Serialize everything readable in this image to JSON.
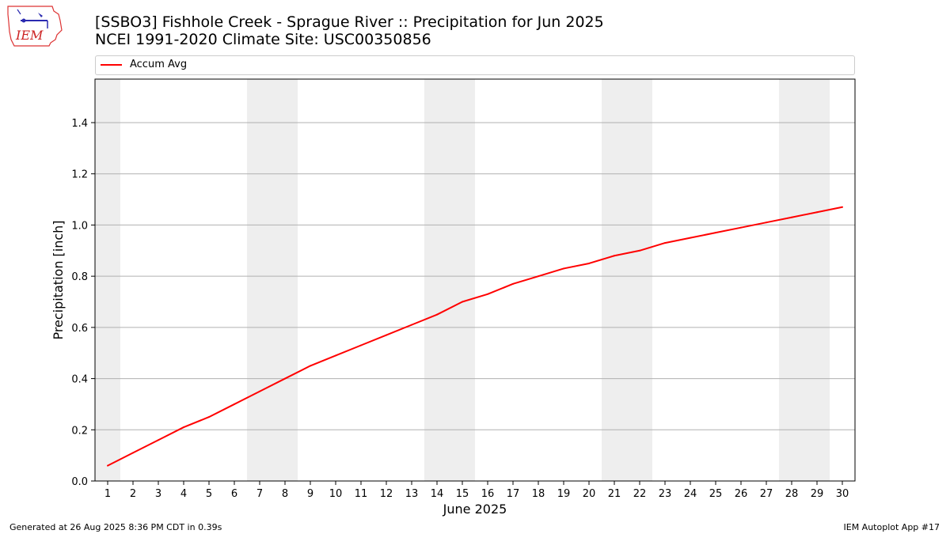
{
  "header": {
    "title_line1": "[SSBO3] Fishhole Creek - Sprague River :: Precipitation for Jun 2025",
    "title_line2": "NCEI 1991-2020 Climate Site: USC00350856",
    "logo_text": "IEM"
  },
  "footer": {
    "left": "Generated at 26 Aug 2025 8:36 PM CDT in 0.39s",
    "right": "IEM Autoplot App #17"
  },
  "colors": {
    "line": "#ff0000",
    "weekend_shade": "#eeeeee",
    "grid": "#b0b0b0"
  },
  "chart_data": {
    "type": "line",
    "xlabel": "June 2025",
    "ylabel": "Precipitation [inch]",
    "x": [
      1,
      2,
      3,
      4,
      5,
      6,
      7,
      8,
      9,
      10,
      11,
      12,
      13,
      14,
      15,
      16,
      17,
      18,
      19,
      20,
      21,
      22,
      23,
      24,
      25,
      26,
      27,
      28,
      29,
      30
    ],
    "xlim": [
      0.5,
      30.5
    ],
    "ylim": [
      0,
      1.57
    ],
    "yticks": [
      "0.0",
      "0.2",
      "0.4",
      "0.6",
      "0.8",
      "1.0",
      "1.2",
      "1.4"
    ],
    "grid": "horizontal",
    "legend_position": "top",
    "shaded_days": [
      [
        0.5,
        1.5
      ],
      [
        6.5,
        8.5
      ],
      [
        13.5,
        15.5
      ],
      [
        20.5,
        22.5
      ],
      [
        27.5,
        29.5
      ]
    ],
    "series": [
      {
        "name": "Accum Avg",
        "color": "#ff0000",
        "values": [
          0.06,
          0.11,
          0.16,
          0.21,
          0.25,
          0.3,
          0.35,
          0.4,
          0.45,
          0.49,
          0.53,
          0.57,
          0.61,
          0.65,
          0.7,
          0.73,
          0.77,
          0.8,
          0.83,
          0.85,
          0.88,
          0.9,
          0.93,
          0.95,
          0.97,
          0.99,
          1.01,
          1.03,
          1.05,
          1.07
        ]
      }
    ]
  }
}
